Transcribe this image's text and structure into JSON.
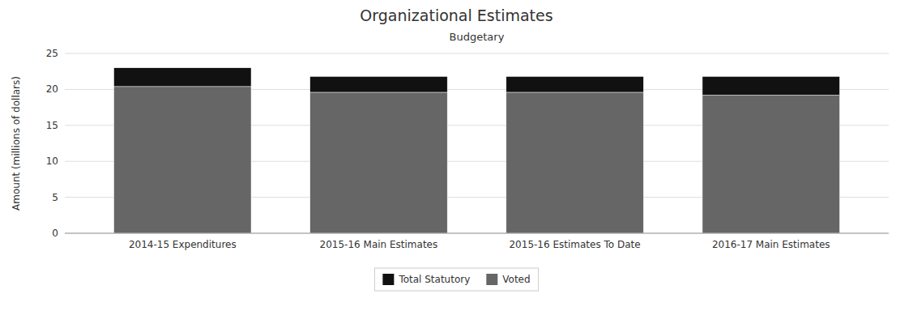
{
  "chart_data": {
    "type": "bar",
    "stacked": true,
    "title": "Organizational Estimates",
    "subtitle": "Budgetary",
    "ylabel": "Amount (millions of dollars)",
    "categories": [
      "2014-15 Expenditures",
      "2015-16 Main Estimates",
      "2015-16 Estimates To Date",
      "2016-17 Main Estimates"
    ],
    "series": [
      {
        "name": "Voted",
        "color": "#666666",
        "values": [
          20.4,
          19.6,
          19.6,
          19.2
        ]
      },
      {
        "name": "Total Statutory",
        "color": "#111111",
        "values": [
          2.6,
          2.2,
          2.2,
          2.6
        ]
      }
    ],
    "ylim": [
      0,
      25
    ],
    "yticks": [
      0,
      5,
      10,
      15,
      20,
      25
    ],
    "grid": true,
    "legend": "bottom"
  }
}
